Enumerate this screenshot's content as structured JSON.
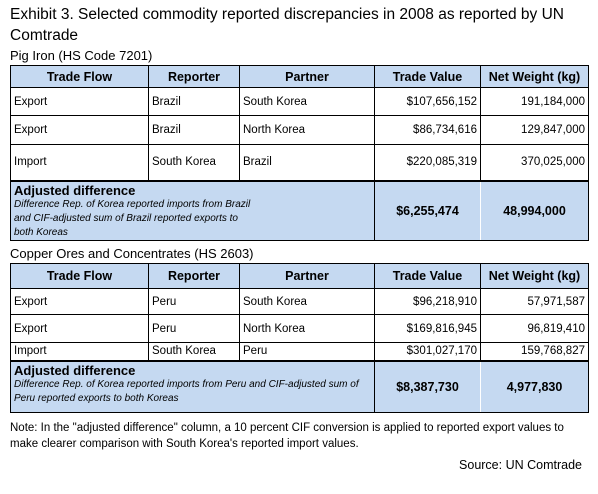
{
  "title": "Exhibit 3. Selected commodity reported discrepancies in 2008 as reported by UN Comtrade",
  "headers": [
    "Trade Flow",
    "Reporter",
    "Partner",
    "Trade Value",
    "Net Weight (kg)"
  ],
  "table1": {
    "subtitle": "Pig Iron (HS Code 7201)",
    "rows": [
      [
        "Export",
        "Brazil",
        "South Korea",
        "$107,656,152",
        "191,184,000"
      ],
      [
        "Export",
        "Brazil",
        "North Korea",
        "$86,734,616",
        "129,847,000"
      ],
      [
        "Import",
        "South Korea",
        "Brazil",
        "$220,085,319",
        "370,025,000"
      ]
    ],
    "adjusted": {
      "label": "Adjusted difference",
      "description": "Difference Rep. of Korea reported imports from Brazil and CIF-adjusted sum of Brazil reported exports to both Koreas",
      "trade_value": "$6,255,474",
      "net_weight": "48,994,000"
    }
  },
  "table2": {
    "subtitle": "Copper Ores and Concentrates (HS 2603)",
    "rows": [
      [
        "Export",
        "Peru",
        "South Korea",
        "$96,218,910",
        "57,971,587"
      ],
      [
        "Export",
        "Peru",
        "North Korea",
        "$169,816,945",
        "96,819,410"
      ],
      [
        "Import",
        "South Korea",
        "Peru",
        "$301,027,170",
        "159,768,827"
      ]
    ],
    "adjusted": {
      "label": "Adjusted difference",
      "description": "Difference Rep. of Korea reported imports from Peru and CIF-adjusted sum of Peru reported exports to both Koreas",
      "trade_value": "$8,387,730",
      "net_weight": "4,977,830"
    }
  },
  "note": "Note: In the \"adjusted difference\" column, a 10 percent CIF conversion is applied to reported export values to make clearer comparison with South Korea's reported import values.",
  "source": "Source: UN Comtrade"
}
